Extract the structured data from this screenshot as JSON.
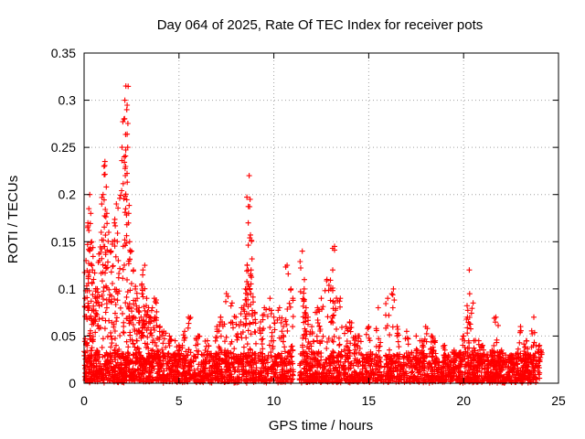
{
  "chart_data": {
    "type": "scatter",
    "title": "Day 064 of 2025, Rate Of TEC Index for receiver pots",
    "xlabel": "GPS time / hours",
    "ylabel": "ROTI / TECUs",
    "xlim": [
      0,
      25
    ],
    "ylim": [
      0,
      0.35
    ],
    "xticks": [
      "0",
      "5",
      "10",
      "15",
      "20",
      "25"
    ],
    "yticks": [
      "0",
      "0.05",
      "0.1",
      "0.15",
      "0.2",
      "0.25",
      "0.3",
      "0.35"
    ],
    "grid": true,
    "marker": "+",
    "color": "#ff0000",
    "gap": [
      11.05,
      11.35
    ],
    "series": [
      {
        "x": [
          0.05,
          0.1,
          0.2,
          0.25,
          0.3,
          0.35,
          0.4,
          0.45,
          0.5,
          0.6,
          0.7,
          0.8,
          0.9,
          1.0,
          1.05,
          1.1,
          1.2,
          1.3,
          1.4,
          1.5,
          1.6,
          1.7,
          1.8,
          2.0,
          2.1,
          2.15,
          2.2,
          2.25,
          2.3,
          2.35,
          2.4,
          2.5,
          2.6,
          2.7,
          2.8,
          2.9,
          3.0,
          3.1,
          3.2,
          3.3,
          3.4,
          3.5,
          3.6,
          3.7,
          3.8,
          4.0,
          4.2,
          4.5,
          4.8,
          5.0,
          5.3,
          5.5,
          6.0,
          6.5,
          7.0,
          7.2,
          7.5,
          7.8,
          8.0,
          8.3,
          8.5,
          8.6,
          8.65,
          8.7,
          8.75,
          8.8,
          9.0,
          9.3,
          9.5,
          9.8,
          10.0,
          10.3,
          10.5,
          10.7,
          10.9,
          11.0,
          11.5,
          11.6,
          11.7,
          11.8,
          12.0,
          12.3,
          12.5,
          12.8,
          13.0,
          13.1,
          13.2,
          13.5,
          13.8,
          14.0,
          14.3,
          14.5,
          15.0,
          15.5,
          16.0,
          16.3,
          16.5,
          17.0,
          17.5,
          17.8,
          18.0,
          18.3,
          18.5,
          19.0,
          19.5,
          20.0,
          20.2,
          20.3,
          20.5,
          20.8,
          21.0,
          21.5,
          21.7,
          22.0,
          22.5,
          23.0,
          23.3,
          23.5,
          23.7,
          24.0
        ],
        "y": [
          0.09,
          0.13,
          0.17,
          0.185,
          0.2,
          0.18,
          0.15,
          0.12,
          0.11,
          0.09,
          0.1,
          0.13,
          0.16,
          0.2,
          0.23,
          0.235,
          0.18,
          0.16,
          0.14,
          0.15,
          0.17,
          0.19,
          0.13,
          0.25,
          0.28,
          0.3,
          0.315,
          0.29,
          0.25,
          0.18,
          0.15,
          0.14,
          0.12,
          0.1,
          0.09,
          0.08,
          0.07,
          0.12,
          0.125,
          0.09,
          0.08,
          0.07,
          0.08,
          0.09,
          0.085,
          0.06,
          0.055,
          0.05,
          0.045,
          0.04,
          0.055,
          0.07,
          0.05,
          0.045,
          0.06,
          0.07,
          0.095,
          0.085,
          0.07,
          0.08,
          0.1,
          0.125,
          0.17,
          0.22,
          0.195,
          0.12,
          0.075,
          0.065,
          0.08,
          0.09,
          0.07,
          0.08,
          0.06,
          0.125,
          0.1,
          0.09,
          0.14,
          0.1,
          0.08,
          0.07,
          0.06,
          0.08,
          0.09,
          0.11,
          0.1,
          0.12,
          0.145,
          0.09,
          0.06,
          0.065,
          0.05,
          0.05,
          0.06,
          0.08,
          0.09,
          0.1,
          0.06,
          0.055,
          0.05,
          0.045,
          0.06,
          0.05,
          0.045,
          0.04,
          0.035,
          0.05,
          0.07,
          0.12,
          0.085,
          0.045,
          0.04,
          0.035,
          0.07,
          0.035,
          0.03,
          0.06,
          0.045,
          0.03,
          0.07,
          0.04
        ]
      }
    ],
    "baseline": {
      "note_values": "dense band of points near zero",
      "y_low": 0.0,
      "y_high": 0.03
    }
  }
}
